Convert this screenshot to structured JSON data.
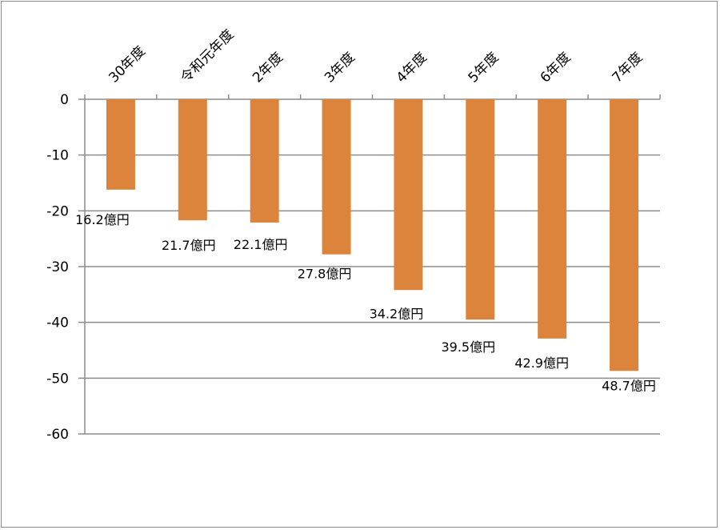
{
  "chart_data": {
    "type": "bar",
    "title": "",
    "xlabel": "",
    "ylabel": "",
    "categories": [
      "30年度",
      "令和元年度",
      "2年度",
      "3年度",
      "4年度",
      "5年度",
      "6年度",
      "7年度"
    ],
    "values": [
      -16.2,
      -21.7,
      -22.1,
      -27.8,
      -34.2,
      -39.5,
      -42.9,
      -48.7
    ],
    "data_labels": [
      "16.2億円",
      "21.7億円",
      "22.1億円",
      "27.8億円",
      "34.2億円",
      "39.5億円",
      "42.9億円",
      "48.7億円"
    ],
    "ylim": [
      -60,
      0
    ],
    "yticks": [
      0,
      -10,
      -20,
      -30,
      -40,
      -50,
      -60
    ],
    "ytick_labels": [
      "0",
      "-10",
      "-20",
      "-30",
      "-40",
      "-50",
      "-60"
    ],
    "grid": true,
    "legend": "none",
    "x_axis_position": "top",
    "bar_color": "#dc843c"
  },
  "colors": {
    "bar": "#dc843c",
    "grid": "#8c8c8c",
    "axis": "#8c8c8c"
  }
}
